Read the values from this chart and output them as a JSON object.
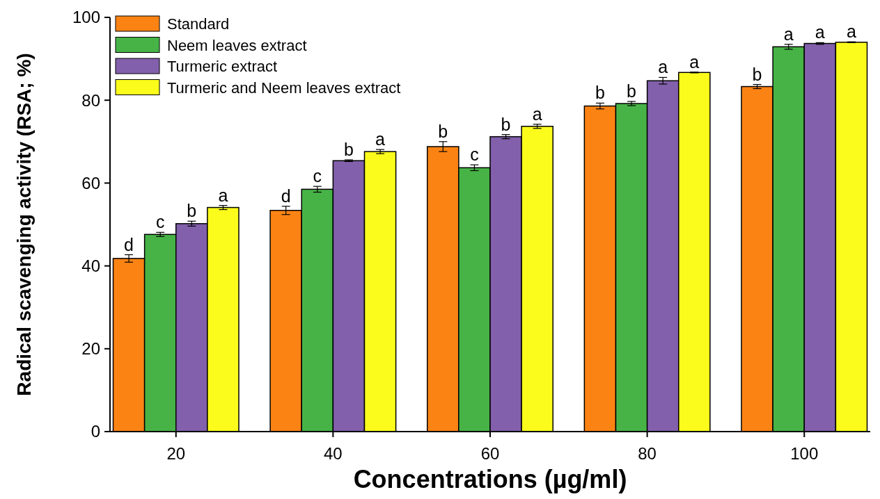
{
  "chart_data": {
    "type": "bar",
    "xlabel": "Concentrations (µg/ml)",
    "ylabel": "Radical scavenging activity (RSA; %)",
    "categories": [
      "20",
      "40",
      "60",
      "80",
      "100"
    ],
    "series": [
      {
        "name": "Standard",
        "color": "#fb8314",
        "values": [
          41.8,
          53.4,
          68.8,
          78.6,
          83.3
        ],
        "errors": [
          0.9,
          1.0,
          1.2,
          0.7,
          0.5
        ],
        "value_labels": [
          "d",
          "d",
          "b",
          "b",
          "b"
        ]
      },
      {
        "name": "Neem leaves extract",
        "color": "#47b347",
        "values": [
          47.6,
          58.5,
          63.7,
          79.2,
          92.9
        ],
        "errors": [
          0.5,
          0.7,
          0.7,
          0.5,
          0.6
        ],
        "value_labels": [
          "c",
          "c",
          "c",
          "b",
          "a"
        ]
      },
      {
        "name": "Turmeric extract",
        "color": "#8260ab",
        "values": [
          50.2,
          65.4,
          71.2,
          84.7,
          93.7
        ],
        "errors": [
          0.6,
          0.2,
          0.5,
          0.8,
          0.2
        ],
        "value_labels": [
          "b",
          "b",
          "b",
          "a",
          "a"
        ]
      },
      {
        "name": "Turmeric and Neem leaves  extract",
        "color": "#fcfc1c",
        "values": [
          54.1,
          67.6,
          73.7,
          86.7,
          94.0
        ],
        "errors": [
          0.5,
          0.5,
          0.5,
          0.1,
          0.1
        ],
        "value_labels": [
          "a",
          "a",
          "a",
          "a",
          "a"
        ]
      }
    ],
    "ylim": [
      0,
      100
    ],
    "yticks": [
      0,
      20,
      40,
      60,
      80,
      100
    ],
    "legend": "top left",
    "grid": false
  }
}
